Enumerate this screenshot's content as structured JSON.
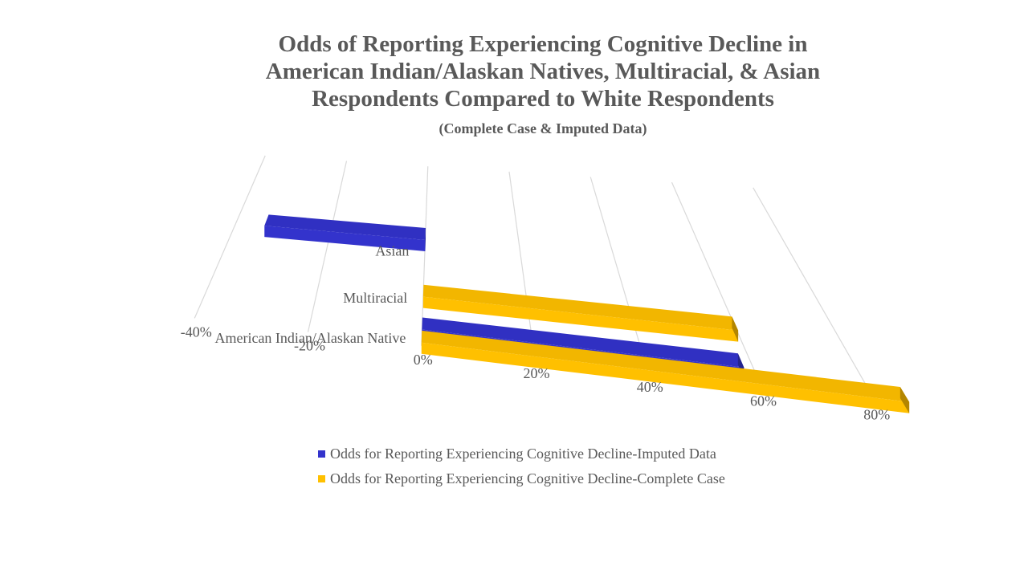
{
  "chart_data": {
    "type": "bar",
    "orientation": "horizontal",
    "style": "3d",
    "title_lines": [
      "Odds of Reporting Experiencing Cognitive Decline in",
      "American Indian/Alaskan Natives, Multiracial, & Asian",
      "Respondents Compared to White Respondents"
    ],
    "subtitle": "(Complete Case & Imputed Data)",
    "categories": [
      "Asian",
      "Multiracial",
      "American Indian/Alaskan Native"
    ],
    "series": [
      {
        "name": "Odds for Reporting Experiencing Cognitive Decline-Imputed Data",
        "color": "#3333CC",
        "values": [
          -34,
          null,
          58
        ]
      },
      {
        "name": "Odds for Reporting Experiencing Cognitive Decline-Complete Case",
        "color": "#FFC000",
        "values": [
          null,
          60,
          86
        ]
      }
    ],
    "xlim": [
      -40,
      80
    ],
    "xticks": [
      "-40%",
      "-20%",
      "0%",
      "20%",
      "40%",
      "60%",
      "80%"
    ],
    "grid": true,
    "legend_position": "bottom"
  }
}
